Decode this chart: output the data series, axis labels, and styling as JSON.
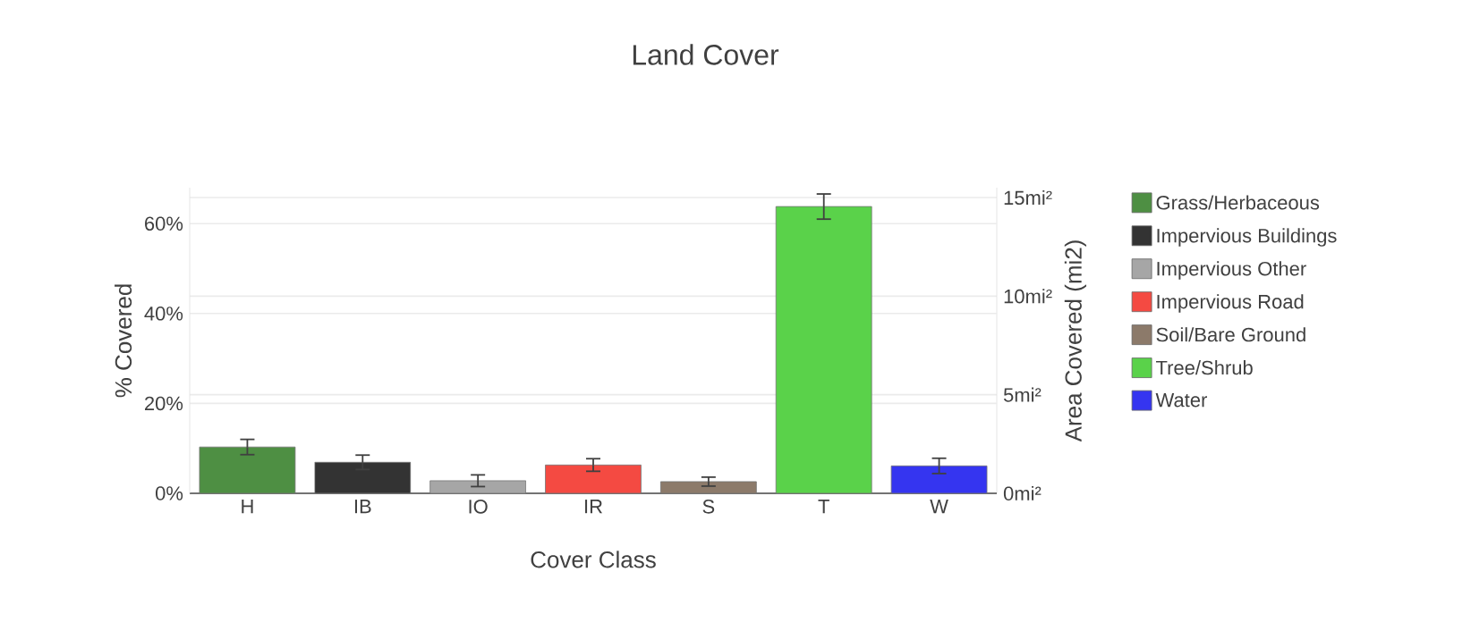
{
  "chart_data": {
    "type": "bar",
    "title": "Land Cover",
    "xlabel": "Cover Class",
    "ylabel": "% Covered",
    "y2label": "Area Covered (mi2)",
    "categories": [
      "H",
      "IB",
      "IO",
      "IR",
      "S",
      "T",
      "W"
    ],
    "series": [
      {
        "name": "Grass/Herbaceous",
        "color": "#4e8f43",
        "values": [
          10.3,
          null,
          null,
          null,
          null,
          null,
          null
        ],
        "errors": [
          1.7,
          null,
          null,
          null,
          null,
          null,
          null
        ]
      },
      {
        "name": "Impervious Buildings",
        "color": "#333333",
        "values": [
          null,
          6.9,
          null,
          null,
          null,
          null,
          null
        ],
        "errors": [
          null,
          1.6,
          null,
          null,
          null,
          null,
          null
        ]
      },
      {
        "name": "Impervious Other",
        "color": "#a6a6a6",
        "values": [
          null,
          null,
          2.8,
          null,
          null,
          null,
          null
        ],
        "errors": [
          null,
          null,
          1.3,
          null,
          null,
          null,
          null
        ]
      },
      {
        "name": "Impervious Road",
        "color": "#f44a42",
        "values": [
          null,
          null,
          null,
          6.3,
          null,
          null,
          null
        ],
        "errors": [
          null,
          null,
          null,
          1.4,
          null,
          null,
          null
        ]
      },
      {
        "name": "Soil/Bare Ground",
        "color": "#8c7a6a",
        "values": [
          null,
          null,
          null,
          null,
          2.6,
          null,
          null
        ],
        "errors": [
          null,
          null,
          null,
          null,
          1.0,
          null,
          null
        ]
      },
      {
        "name": "Tree/Shrub",
        "color": "#5ad24a",
        "values": [
          null,
          null,
          null,
          null,
          null,
          63.8,
          null
        ],
        "errors": [
          null,
          null,
          null,
          null,
          null,
          2.8,
          null
        ]
      },
      {
        "name": "Water",
        "color": "#3535f0",
        "values": [
          null,
          null,
          null,
          null,
          null,
          null,
          6.1
        ],
        "errors": [
          null,
          null,
          null,
          null,
          null,
          null,
          1.7
        ]
      }
    ],
    "ylim": [
      0,
      68
    ],
    "yticks": [
      {
        "value": 0,
        "label": "0%"
      },
      {
        "value": 20,
        "label": "20%"
      },
      {
        "value": 40,
        "label": "40%"
      },
      {
        "value": 60,
        "label": "60%"
      }
    ],
    "y2lim": [
      0,
      15.5
    ],
    "y2ticks": [
      {
        "value": 0,
        "label": "0mi²"
      },
      {
        "value": 5,
        "label": "5mi²"
      },
      {
        "value": 10,
        "label": "10mi²"
      },
      {
        "value": 15,
        "label": "15mi²"
      }
    ],
    "grid": "y",
    "legend": "right"
  }
}
